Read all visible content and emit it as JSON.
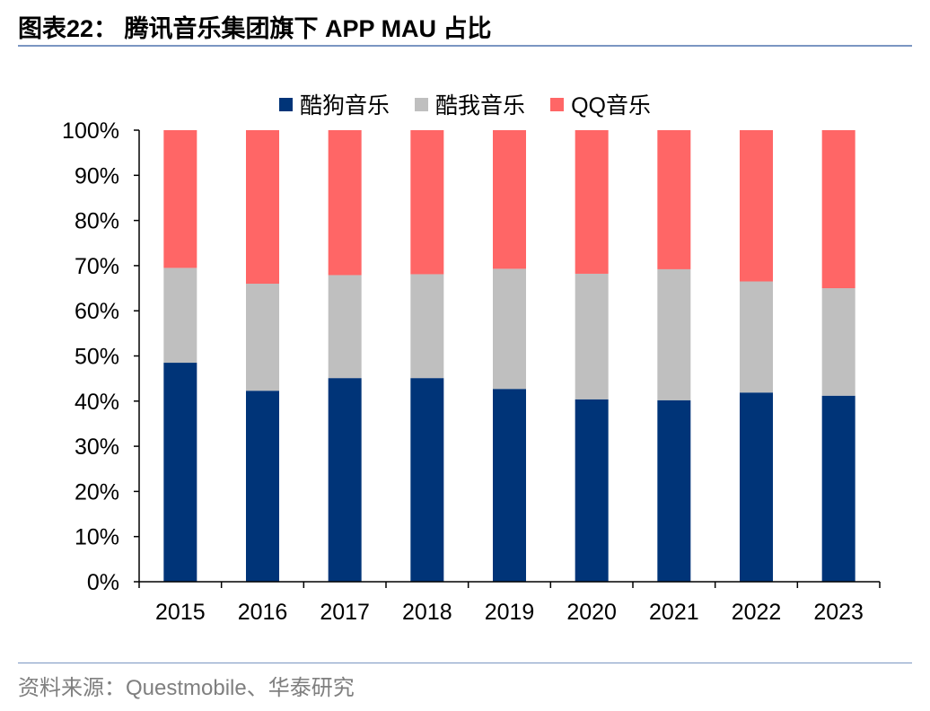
{
  "header": {
    "title": "图表22： 腾讯音乐集团旗下 APP MAU 占比"
  },
  "footer": {
    "source": "资料来源：Questmobile、华泰研究"
  },
  "chart_data": {
    "type": "bar",
    "stacked": true,
    "categories": [
      "2015",
      "2016",
      "2017",
      "2018",
      "2019",
      "2020",
      "2021",
      "2022",
      "2023"
    ],
    "series": [
      {
        "name": "酷狗音乐",
        "color": "#003478",
        "values": [
          48.5,
          42.3,
          45.1,
          45.1,
          42.7,
          40.4,
          40.2,
          41.9,
          41.2
        ]
      },
      {
        "name": "酷我音乐",
        "color": "#bfbfbf",
        "values": [
          21.0,
          23.7,
          22.8,
          23.0,
          26.6,
          27.8,
          29.0,
          24.6,
          23.8
        ]
      },
      {
        "name": "QQ音乐",
        "color": "#ff6666",
        "values": [
          30.5,
          34.0,
          32.1,
          31.9,
          30.7,
          31.8,
          30.8,
          33.5,
          35.0
        ]
      }
    ],
    "yticks": [
      "0%",
      "10%",
      "20%",
      "30%",
      "40%",
      "50%",
      "60%",
      "70%",
      "80%",
      "90%",
      "100%"
    ],
    "ylim": [
      0,
      100
    ],
    "legend_position": "top-center",
    "grid": false
  }
}
